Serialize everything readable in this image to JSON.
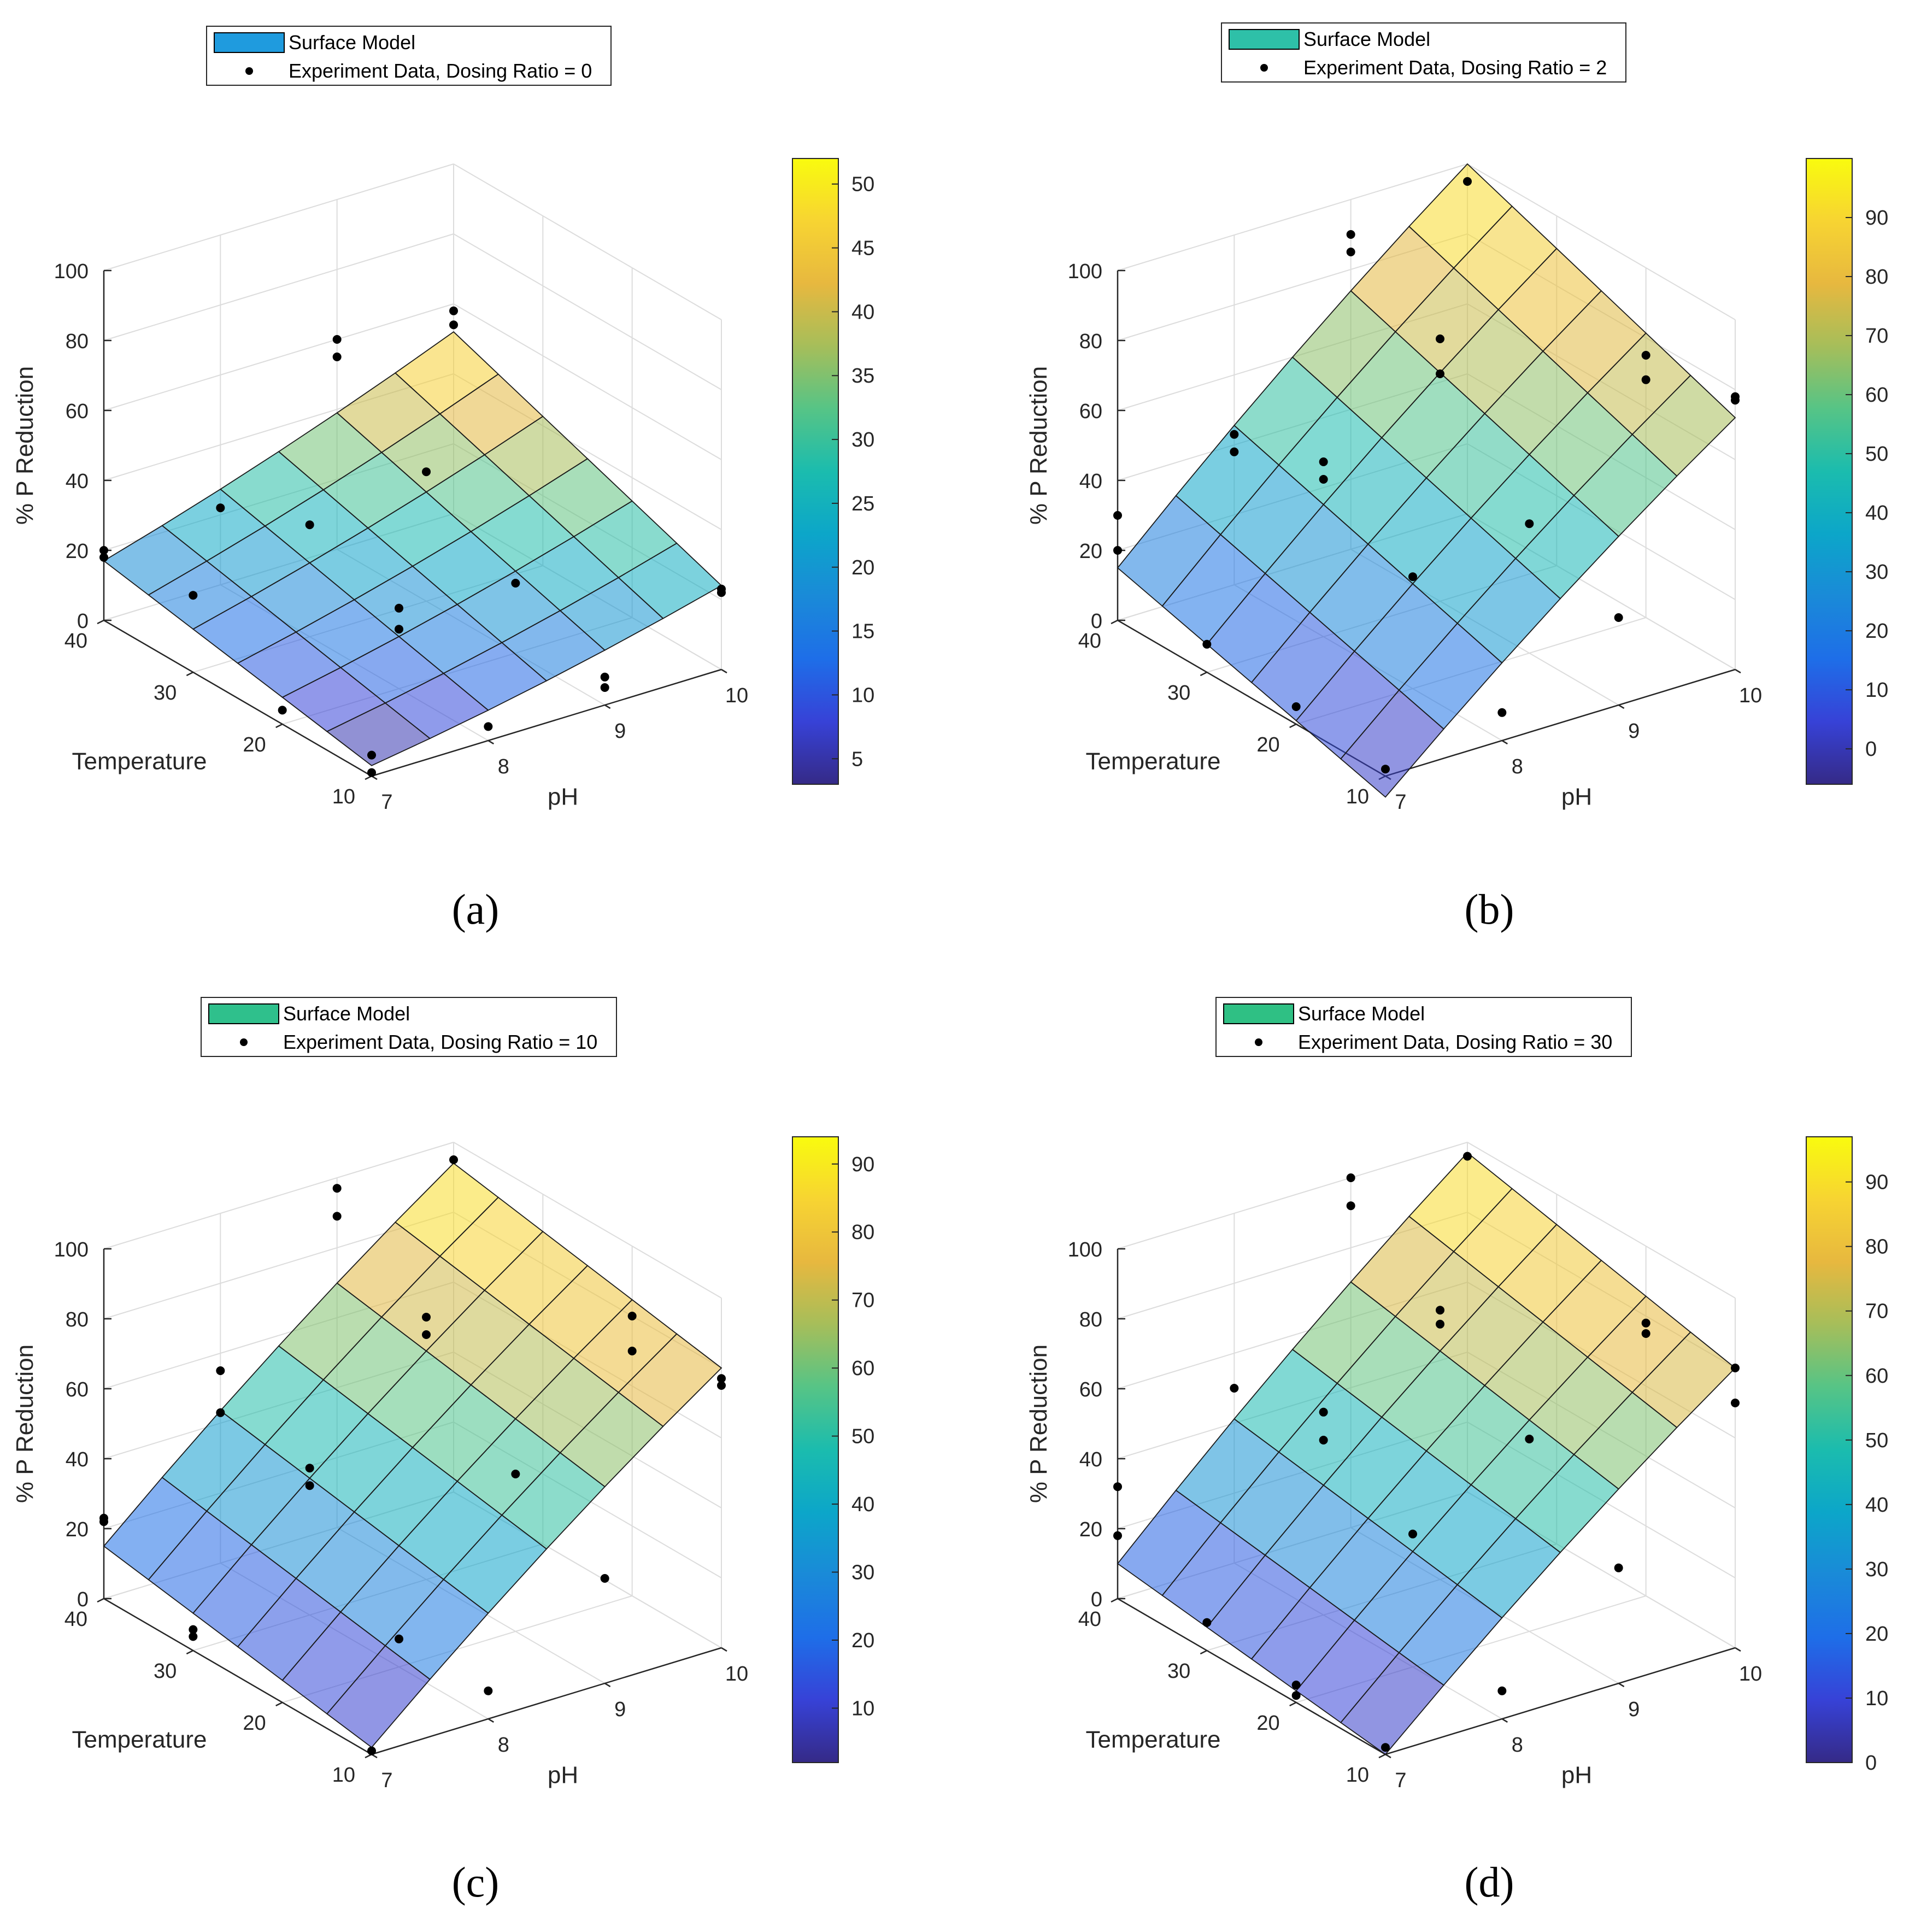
{
  "chart_data": [
    {
      "type": "surface3d",
      "caption": "(a)",
      "xlabel": "pH",
      "ylabel": "Temperature",
      "zlabel": "% P Reduction",
      "x_ticks": [
        "7",
        "8",
        "9",
        "10"
      ],
      "y_ticks": [
        "10",
        "20",
        "30",
        "40"
      ],
      "z_ticks": [
        "0",
        "20",
        "40",
        "60",
        "80",
        "100"
      ],
      "xlim": [
        7,
        10
      ],
      "ylim": [
        10,
        40
      ],
      "zlim": [
        0,
        100
      ],
      "legend": {
        "surface_label": "Surface Model",
        "surface_color": "#1f9bde",
        "points_label": "Experiment Data, Dosing Ratio = 0"
      },
      "colorbar": {
        "ticks": [
          "5",
          "10",
          "15",
          "20",
          "25",
          "30",
          "35",
          "40",
          "45",
          "50"
        ],
        "range": [
          3,
          52
        ]
      },
      "surface_corners": {
        "pH7_T10": 3,
        "pH10_T10": 24,
        "pH7_T40": 17,
        "pH10_T40": 52
      },
      "points": [
        [
          7,
          10,
          1
        ],
        [
          7,
          10,
          6
        ],
        [
          7,
          40,
          20
        ],
        [
          7,
          40,
          18
        ],
        [
          7,
          30,
          22
        ],
        [
          7,
          20,
          4
        ],
        [
          8,
          10,
          4
        ],
        [
          8,
          20,
          17
        ],
        [
          8,
          40,
          22
        ],
        [
          8,
          30,
          32
        ],
        [
          8,
          20,
          23
        ],
        [
          9,
          10,
          5
        ],
        [
          9,
          10,
          8
        ],
        [
          9,
          40,
          60
        ],
        [
          9,
          40,
          55
        ],
        [
          9,
          20,
          20
        ],
        [
          9,
          30,
          37
        ],
        [
          10,
          40,
          58
        ],
        [
          10,
          40,
          54
        ],
        [
          10,
          10,
          22
        ],
        [
          10,
          10,
          23
        ]
      ]
    },
    {
      "type": "surface3d",
      "caption": "(b)",
      "xlabel": "pH",
      "ylabel": "Temperature",
      "zlabel": "% P Reduction",
      "x_ticks": [
        "7",
        "8",
        "9",
        "10"
      ],
      "y_ticks": [
        "10",
        "20",
        "30",
        "40"
      ],
      "z_ticks": [
        "0",
        "20",
        "40",
        "60",
        "80",
        "100"
      ],
      "xlim": [
        7,
        10
      ],
      "ylim": [
        10,
        40
      ],
      "zlim": [
        0,
        100
      ],
      "legend": {
        "surface_label": "Surface Model",
        "surface_color": "#2ec0a8",
        "points_label": "Experiment Data, Dosing Ratio = 2"
      },
      "colorbar": {
        "ticks": [
          "0",
          "10",
          "20",
          "30",
          "40",
          "50",
          "60",
          "70",
          "80",
          "90"
        ],
        "range": [
          -6,
          100
        ]
      },
      "surface_corners": {
        "pH7_T10": -6,
        "pH10_T10": 72,
        "pH7_T40": 15,
        "pH10_T40": 100
      },
      "points": [
        [
          7,
          10,
          2
        ],
        [
          7,
          40,
          30
        ],
        [
          7,
          40,
          20
        ],
        [
          7,
          30,
          8
        ],
        [
          7,
          20,
          5
        ],
        [
          8,
          10,
          8
        ],
        [
          8,
          20,
          32
        ],
        [
          8,
          40,
          43
        ],
        [
          8,
          40,
          38
        ],
        [
          8,
          30,
          50
        ],
        [
          8,
          30,
          45
        ],
        [
          9,
          10,
          25
        ],
        [
          9,
          20,
          37
        ],
        [
          9,
          40,
          90
        ],
        [
          9,
          40,
          85
        ],
        [
          9,
          30,
          65
        ],
        [
          9,
          30,
          75
        ],
        [
          10,
          40,
          95
        ],
        [
          10,
          20,
          68
        ],
        [
          10,
          20,
          75
        ],
        [
          10,
          10,
          78
        ],
        [
          10,
          10,
          77
        ]
      ]
    },
    {
      "type": "surface3d",
      "caption": "(c)",
      "xlabel": "pH",
      "ylabel": "Temperature",
      "zlabel": "% P Reduction",
      "x_ticks": [
        "7",
        "8",
        "9",
        "10"
      ],
      "y_ticks": [
        "10",
        "20",
        "30",
        "40"
      ],
      "z_ticks": [
        "0",
        "20",
        "40",
        "60",
        "80",
        "100"
      ],
      "xlim": [
        7,
        10
      ],
      "ylim": [
        10,
        40
      ],
      "zlim": [
        0,
        100
      ],
      "legend": {
        "surface_label": "Surface Model",
        "surface_color": "#2fc08c",
        "points_label": "Experiment Data, Dosing Ratio = 10"
      },
      "colorbar": {
        "ticks": [
          "10",
          "20",
          "30",
          "40",
          "50",
          "60",
          "70",
          "80",
          "90"
        ],
        "range": [
          2,
          94
        ]
      },
      "surface_corners": {
        "pH7_T10": 2,
        "pH10_T10": 80,
        "pH7_T40": 15,
        "pH10_T40": 94
      },
      "points": [
        [
          7,
          10,
          1
        ],
        [
          7,
          40,
          23
        ],
        [
          7,
          40,
          22
        ],
        [
          7,
          30,
          6
        ],
        [
          7,
          30,
          4
        ],
        [
          8,
          10,
          8
        ],
        [
          8,
          20,
          8
        ],
        [
          8,
          40,
          55
        ],
        [
          8,
          40,
          43
        ],
        [
          8,
          30,
          42
        ],
        [
          8,
          30,
          37
        ],
        [
          9,
          10,
          30
        ],
        [
          9,
          20,
          45
        ],
        [
          9,
          40,
          97
        ],
        [
          9,
          40,
          89
        ],
        [
          9,
          30,
          75
        ],
        [
          9,
          30,
          70
        ],
        [
          10,
          40,
          95
        ],
        [
          10,
          20,
          80
        ],
        [
          10,
          20,
          70
        ],
        [
          10,
          10,
          77
        ],
        [
          10,
          10,
          75
        ]
      ]
    },
    {
      "type": "surface3d",
      "caption": "(d)",
      "xlabel": "pH",
      "ylabel": "Temperature",
      "zlabel": "% P Reduction",
      "x_ticks": [
        "7",
        "8",
        "9",
        "10"
      ],
      "y_ticks": [
        "10",
        "20",
        "30",
        "40"
      ],
      "z_ticks": [
        "0",
        "20",
        "40",
        "60",
        "80",
        "100"
      ],
      "xlim": [
        7,
        10
      ],
      "ylim": [
        10,
        40
      ],
      "zlim": [
        0,
        100
      ],
      "legend": {
        "surface_label": "Surface Model",
        "surface_color": "#2fc084",
        "points_label": "Experiment Data, Dosing Ratio = 30"
      },
      "colorbar": {
        "ticks": [
          "0",
          "10",
          "20",
          "30",
          "40",
          "50",
          "60",
          "70",
          "80",
          "90"
        ],
        "range": [
          0,
          97
        ]
      },
      "surface_corners": {
        "pH7_T10": 0,
        "pH10_T10": 80,
        "pH7_T40": 10,
        "pH10_T40": 97
      },
      "points": [
        [
          7,
          10,
          2
        ],
        [
          7,
          40,
          32
        ],
        [
          7,
          40,
          18
        ],
        [
          7,
          30,
          8
        ],
        [
          7,
          20,
          5
        ],
        [
          7,
          20,
          2
        ],
        [
          8,
          10,
          8
        ],
        [
          8,
          20,
          38
        ],
        [
          8,
          40,
          50
        ],
        [
          8,
          30,
          58
        ],
        [
          8,
          30,
          50
        ],
        [
          9,
          10,
          33
        ],
        [
          9,
          20,
          55
        ],
        [
          9,
          40,
          100
        ],
        [
          9,
          40,
          92
        ],
        [
          9,
          30,
          77
        ],
        [
          9,
          30,
          73
        ],
        [
          10,
          40,
          96
        ],
        [
          10,
          20,
          78
        ],
        [
          10,
          20,
          75
        ],
        [
          10,
          10,
          80
        ],
        [
          10,
          10,
          70
        ]
      ]
    }
  ]
}
